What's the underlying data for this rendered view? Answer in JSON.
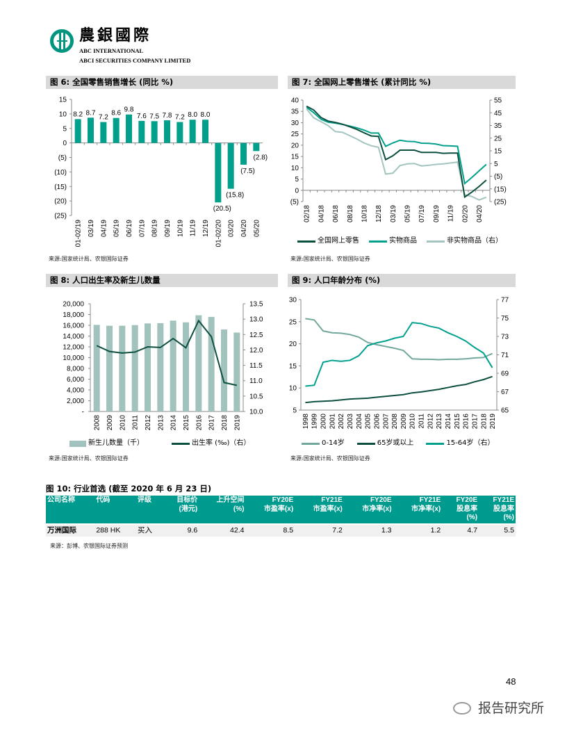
{
  "header": {
    "logo_cn": "農銀國際",
    "logo_en1": "ABC INTERNATIONAL",
    "logo_en2": "ABCI SECURITIES COMPANY LIMITED"
  },
  "fig6": {
    "title": "图 6: 全国零售销售增长 (同比 %)",
    "source": "来源:国家统计局、农银国际证券"
  },
  "fig7": {
    "title": "图 7: 全国网上零售增长 (累计同比 %)",
    "source": "来源:国家统计局、农银国际证券"
  },
  "fig8": {
    "title": "图 8: 人口出生率及新生儿数量",
    "source": "来源:国家统计局、农银国际证券"
  },
  "fig9": {
    "title": "图 9: 人口年龄分布 (%)",
    "source": "来源:国家统计局、农银国际证券"
  },
  "colors": {
    "teal": "#00a08c",
    "dark": "#0d4f3f",
    "light": "#a3c4bf",
    "grey_teal": "#72a79c",
    "bar_grey": "#a2c2bd",
    "header_teal": "#009b8f"
  },
  "chart_data": [
    {
      "type": "bar",
      "categories": [
        "01-02/19",
        "03/19",
        "04/19",
        "05/19",
        "06/19",
        "07/19",
        "08/19",
        "09/19",
        "10/19",
        "11/19",
        "12/19",
        "01-02/20",
        "03/20",
        "04/20",
        "05/20"
      ],
      "values": [
        8.2,
        8.7,
        7.2,
        8.6,
        9.8,
        7.6,
        7.5,
        7.8,
        7.2,
        8.0,
        8.0,
        -20.5,
        -15.8,
        -7.5,
        -2.8
      ],
      "data_labels": [
        "8.2",
        "8.7",
        "7.2",
        "8.6",
        "9.8",
        "7.6",
        "7.5",
        "7.8",
        "7.2",
        "8.0",
        "8.0",
        "(20.5)",
        "(15.8)",
        "(7.5)",
        "(2.8)"
      ],
      "ylim": [
        -25,
        15
      ],
      "yticks": [
        "15",
        "10",
        "5",
        "0",
        "(5)",
        "(10)",
        "(15)",
        "(20)",
        "(25)"
      ],
      "grid": false
    },
    {
      "type": "line",
      "x": [
        "02/18",
        "03/18",
        "04/18",
        "05/18",
        "06/18",
        "07/18",
        "08/18",
        "09/18",
        "10/18",
        "11/18",
        "12/18",
        "02/19",
        "03/19",
        "04/19",
        "05/19",
        "06/19",
        "07/19",
        "08/19",
        "09/19",
        "10/19",
        "11/19",
        "12/19",
        "02/20",
        "03/20",
        "04/20",
        "05/20"
      ],
      "xtick_labels": [
        "02/18",
        "04/18",
        "06/18",
        "08/18",
        "10/18",
        "12/18",
        "03/19",
        "05/19",
        "07/19",
        "09/19",
        "11/19",
        "02/20",
        "04/20"
      ],
      "ylim_left": [
        -5,
        40
      ],
      "yticks_left": [
        "40",
        "35",
        "30",
        "25",
        "20",
        "15",
        "10",
        "5",
        "0",
        "(5)"
      ],
      "ylim_right": [
        -25,
        55
      ],
      "yticks_right": [
        "55",
        "45",
        "35",
        "25",
        "15",
        "5",
        "(5)",
        "(15)",
        "(25)"
      ],
      "series": [
        {
          "name": "全国网上零售",
          "axis": "left",
          "values": [
            37.3,
            35.6,
            32.3,
            30.7,
            30.1,
            29.3,
            28.2,
            27.0,
            25.5,
            24.1,
            23.9,
            13.6,
            15.3,
            17.8,
            17.8,
            17.8,
            16.8,
            16.8,
            16.8,
            16.4,
            16.5,
            16.5,
            -3.0,
            -0.8,
            1.7,
            4.5
          ]
        },
        {
          "name": "实物商品",
          "axis": "left",
          "values": [
            36.8,
            34.4,
            31.5,
            30.2,
            29.8,
            29.2,
            28.5,
            27.7,
            26.7,
            25.4,
            25.4,
            19.5,
            21.0,
            22.2,
            21.7,
            21.6,
            20.9,
            20.8,
            20.5,
            19.8,
            19.7,
            19.5,
            3.0,
            5.7,
            8.6,
            11.5
          ]
        },
        {
          "name": "非实物商品（右）",
          "axis": "right",
          "values": [
            48.1,
            41.0,
            38.0,
            34.9,
            30.2,
            29.6,
            27.0,
            24.3,
            21.2,
            19.0,
            17.8,
            -3.3,
            -2.6,
            3.4,
            4.7,
            5.0,
            3.1,
            3.6,
            4.3,
            4.7,
            5.4,
            6.1,
            -19.6,
            -21.0,
            -23.7,
            -21.6
          ]
        }
      ],
      "legend": "bottom",
      "grid": false
    },
    {
      "type": "bar+line",
      "categories": [
        "2008",
        "2009",
        "2010",
        "2011",
        "2012",
        "2013",
        "2014",
        "2015",
        "2016",
        "2017",
        "2018",
        "2019"
      ],
      "ylim_left": [
        0,
        20000
      ],
      "yticks_left": [
        "20,000",
        "18,000",
        "16,000",
        "14,000",
        "12,000",
        "10,000",
        "8,000",
        "6,000",
        "4,000",
        "2,000",
        "-"
      ],
      "ylim_right": [
        10.0,
        13.5
      ],
      "yticks_right": [
        "13.5",
        "13.0",
        "12.5",
        "12.0",
        "11.5",
        "11.0",
        "10.5",
        "10.0"
      ],
      "series": [
        {
          "name": "新生儿数量（千）",
          "type": "bar",
          "axis": "left",
          "values": [
            16080,
            15910,
            15920,
            16040,
            16350,
            16400,
            16870,
            16550,
            17860,
            17560,
            15230,
            14650
          ]
        },
        {
          "name": "出生率 (‰)（右）",
          "type": "line",
          "axis": "right",
          "values": [
            12.14,
            11.95,
            11.9,
            11.93,
            12.1,
            12.08,
            12.37,
            12.07,
            12.95,
            12.43,
            10.94,
            10.85
          ]
        }
      ],
      "legend": "bottom",
      "grid": false
    },
    {
      "type": "line",
      "x": [
        "1998",
        "1999",
        "2000",
        "2001",
        "2002",
        "2003",
        "2004",
        "2005",
        "2006",
        "2007",
        "2008",
        "2009",
        "2010",
        "2011",
        "2012",
        "2013",
        "2014",
        "2015",
        "2016",
        "2017",
        "2018",
        "2019"
      ],
      "ylim_left": [
        5,
        30
      ],
      "yticks_left": [
        "30",
        "25",
        "20",
        "15",
        "10",
        "5"
      ],
      "ylim_right": [
        65,
        77
      ],
      "yticks_right": [
        "77",
        "75",
        "73",
        "71",
        "69",
        "67",
        "65"
      ],
      "series": [
        {
          "name": "0-14岁",
          "axis": "left",
          "values": [
            25.7,
            25.4,
            22.9,
            22.5,
            22.4,
            22.1,
            21.5,
            20.3,
            19.8,
            19.4,
            19.0,
            18.5,
            16.6,
            16.5,
            16.5,
            16.4,
            16.5,
            16.5,
            16.6,
            16.8,
            16.9,
            17.8
          ]
        },
        {
          "name": "65岁或以上",
          "axis": "left",
          "values": [
            6.7,
            6.9,
            7.0,
            7.1,
            7.3,
            7.5,
            7.6,
            7.7,
            7.9,
            8.1,
            8.3,
            8.5,
            8.9,
            9.1,
            9.4,
            9.7,
            10.1,
            10.5,
            10.8,
            11.4,
            11.9,
            12.6
          ]
        },
        {
          "name": "15-64岁（右）",
          "axis": "right",
          "values": [
            67.6,
            67.7,
            70.2,
            70.4,
            70.3,
            70.4,
            70.9,
            72.0,
            72.3,
            72.5,
            72.8,
            73.0,
            74.5,
            74.4,
            74.1,
            73.9,
            73.4,
            73.0,
            72.5,
            71.8,
            71.2,
            69.6
          ]
        }
      ],
      "legend": "bottom",
      "grid": false
    }
  ],
  "table": {
    "title": "图 10: 行业首选 (截至 2020 年 6 月 23 日)",
    "headers": [
      [
        "公司名称",
        ""
      ],
      [
        "代码",
        ""
      ],
      [
        "评级",
        ""
      ],
      [
        "目标价",
        "(港元)"
      ],
      [
        "上升空间",
        "(%)"
      ],
      [
        "FY20E",
        "市盈率(x)"
      ],
      [
        "FY21E",
        "市盈率(x)"
      ],
      [
        "FY20E",
        "市净率(x)"
      ],
      [
        "FY21E",
        "市净率(x)"
      ],
      [
        "FY20E",
        "股息率",
        "(%)"
      ],
      [
        "FY21E",
        "股息率",
        "(%)"
      ]
    ],
    "rows": [
      [
        "万洲国际",
        "288 HK",
        "买入",
        "9.6",
        "42.4",
        "8.5",
        "7.2",
        "1.3",
        "1.2",
        "4.7",
        "5.5"
      ]
    ],
    "source": "来源：彭博、农银国际证券预测"
  },
  "footer": {
    "page_number": "48",
    "watermark": "报告研究所"
  }
}
